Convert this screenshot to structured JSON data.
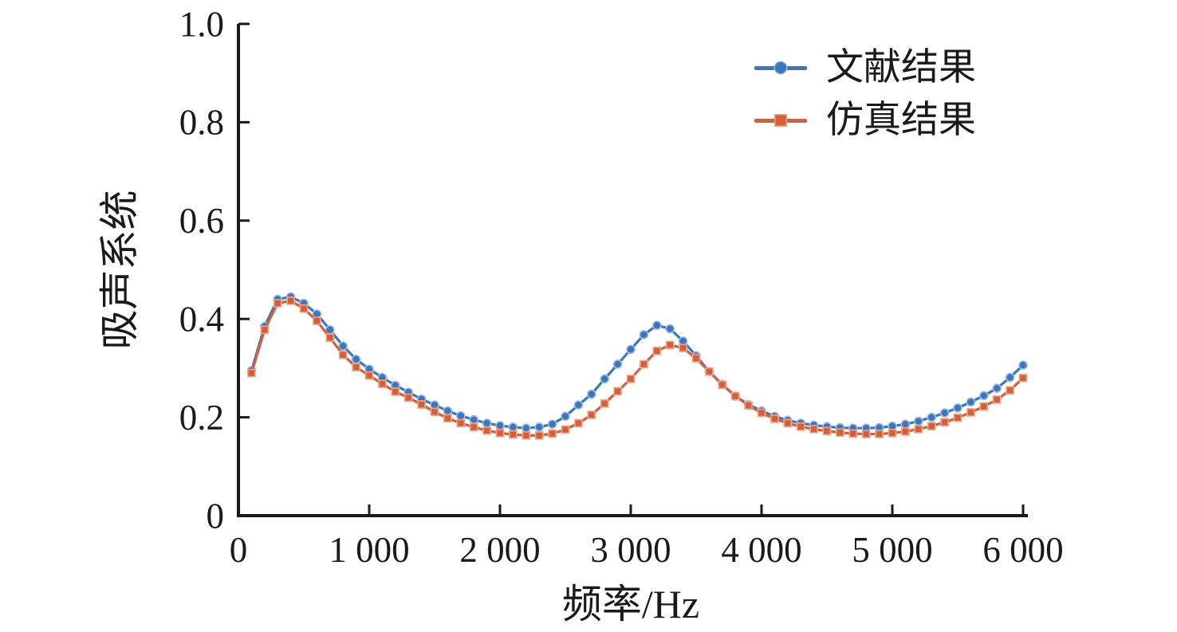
{
  "figure": {
    "background_color": "#ffffff",
    "axis_color": "#1a1a1a",
    "text_color": "#1a1a1a"
  },
  "chart_data": {
    "type": "line",
    "title": "",
    "xlabel": "频率/Hz",
    "ylabel": "吸声系统",
    "xlim": [
      0,
      6000
    ],
    "ylim": [
      0,
      1.0
    ],
    "grid": false,
    "legend_position": "top-right",
    "x_ticks": [
      {
        "value": 0,
        "label": "0"
      },
      {
        "value": 1000,
        "label": "1 000"
      },
      {
        "value": 2000,
        "label": "2 000"
      },
      {
        "value": 3000,
        "label": "3 000"
      },
      {
        "value": 4000,
        "label": "4 000"
      },
      {
        "value": 5000,
        "label": "5 000"
      },
      {
        "value": 6000,
        "label": "6 000"
      }
    ],
    "y_ticks": [
      {
        "value": 0,
        "label": "0"
      },
      {
        "value": 0.2,
        "label": "0.2"
      },
      {
        "value": 0.4,
        "label": "0.4"
      },
      {
        "value": 0.6,
        "label": "0.6"
      },
      {
        "value": 0.8,
        "label": "0.8"
      },
      {
        "value": 1.0,
        "label": "1.0"
      }
    ],
    "x": [
      100,
      200,
      300,
      400,
      500,
      600,
      700,
      800,
      900,
      1000,
      1100,
      1200,
      1300,
      1400,
      1500,
      1600,
      1700,
      1800,
      1900,
      2000,
      2100,
      2200,
      2300,
      2400,
      2500,
      2600,
      2700,
      2800,
      2900,
      3000,
      3100,
      3200,
      3300,
      3400,
      3500,
      3600,
      3700,
      3800,
      3900,
      4000,
      4100,
      4200,
      4300,
      4400,
      4500,
      4600,
      4700,
      4800,
      4900,
      5000,
      5100,
      5200,
      5300,
      5400,
      5500,
      5600,
      5700,
      5800,
      5900,
      6000
    ],
    "series": [
      {
        "name": "文献结果",
        "marker": "circle",
        "color": "#3a77bd",
        "marker_halo": "#9dbce2",
        "values": [
          0.295,
          0.385,
          0.44,
          0.445,
          0.432,
          0.41,
          0.378,
          0.345,
          0.318,
          0.298,
          0.281,
          0.265,
          0.251,
          0.237,
          0.225,
          0.213,
          0.203,
          0.195,
          0.188,
          0.183,
          0.18,
          0.178,
          0.18,
          0.186,
          0.202,
          0.225,
          0.247,
          0.278,
          0.308,
          0.338,
          0.368,
          0.387,
          0.38,
          0.355,
          0.325,
          0.293,
          0.267,
          0.243,
          0.226,
          0.213,
          0.202,
          0.194,
          0.188,
          0.184,
          0.181,
          0.179,
          0.178,
          0.178,
          0.179,
          0.182,
          0.186,
          0.192,
          0.2,
          0.209,
          0.219,
          0.231,
          0.244,
          0.259,
          0.281,
          0.306
        ]
      },
      {
        "name": "仿真结果",
        "marker": "square",
        "color": "#d65f3a",
        "marker_halo": "#efa486",
        "values": [
          0.29,
          0.378,
          0.432,
          0.437,
          0.421,
          0.396,
          0.362,
          0.327,
          0.302,
          0.285,
          0.268,
          0.252,
          0.24,
          0.226,
          0.211,
          0.198,
          0.188,
          0.18,
          0.173,
          0.168,
          0.165,
          0.163,
          0.163,
          0.167,
          0.175,
          0.188,
          0.205,
          0.228,
          0.253,
          0.278,
          0.308,
          0.335,
          0.347,
          0.341,
          0.32,
          0.293,
          0.266,
          0.243,
          0.224,
          0.209,
          0.197,
          0.188,
          0.181,
          0.176,
          0.172,
          0.169,
          0.167,
          0.166,
          0.166,
          0.168,
          0.171,
          0.176,
          0.182,
          0.19,
          0.199,
          0.21,
          0.222,
          0.236,
          0.255,
          0.28
        ]
      }
    ]
  }
}
